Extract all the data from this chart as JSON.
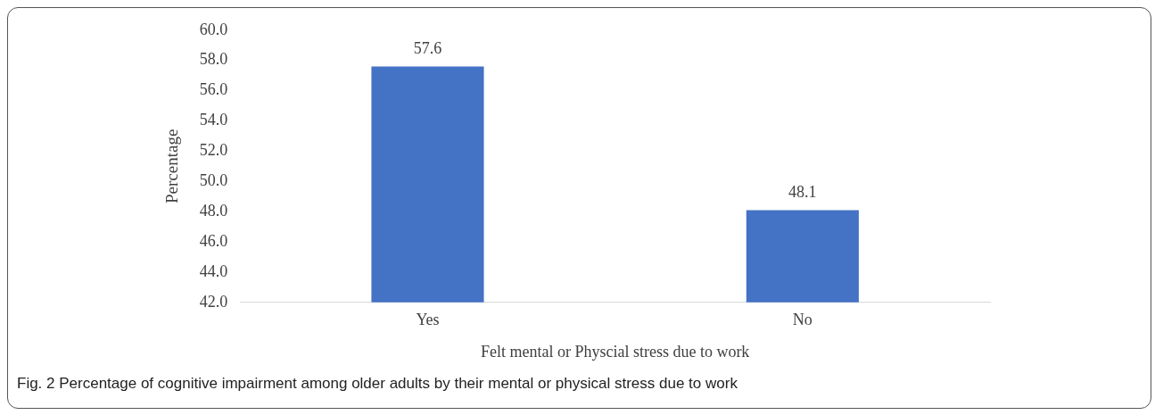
{
  "chart_data": {
    "type": "bar",
    "categories": [
      "Yes",
      "No"
    ],
    "values": [
      57.6,
      48.1
    ],
    "color": "#4472c4",
    "xlabel": "Felt mental or Physcial stress due to work",
    "ylabel": "Percentage",
    "ylim": [
      42,
      60
    ],
    "yticks": [
      {
        "value": 42,
        "label": "42.0"
      },
      {
        "value": 44,
        "label": "44.0"
      },
      {
        "value": 46,
        "label": "46.0"
      },
      {
        "value": 48,
        "label": "48.0"
      },
      {
        "value": 50,
        "label": "50.0"
      },
      {
        "value": 52,
        "label": "52.0"
      },
      {
        "value": 54,
        "label": "54.0"
      },
      {
        "value": 56,
        "label": "56.0"
      },
      {
        "value": 58,
        "label": "58.0"
      },
      {
        "value": 60,
        "label": "60.0"
      }
    ],
    "data_labels": true,
    "grid": false,
    "legend": false,
    "annotations": [
      "Fig. 2 Percentage of cognitive impairment among older adults by their mental or physical stress due to work"
    ]
  }
}
